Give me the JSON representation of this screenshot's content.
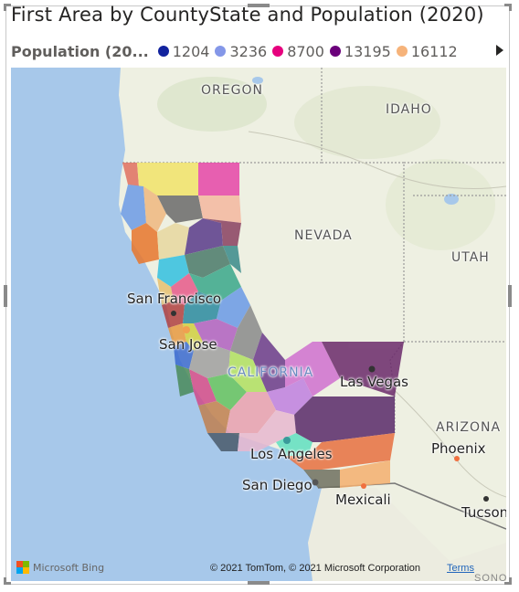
{
  "visual": {
    "title": "First Area by CountyState and Population (2020)"
  },
  "legend": {
    "title": "Population (20...",
    "items": [
      {
        "label": "1204",
        "color": "#12239e"
      },
      {
        "label": "3236",
        "color": "#8497e8"
      },
      {
        "label": "8700",
        "color": "#e6007e"
      },
      {
        "label": "13195",
        "color": "#6b007b"
      },
      {
        "label": "16112",
        "color": "#f6b37a"
      }
    ],
    "next_icon": "chevron-right-icon"
  },
  "map": {
    "states": {
      "oregon": "OREGON",
      "idaho": "IDAHO",
      "nevada": "NEVADA",
      "utah": "UTAH",
      "california": "CALIFORNIA",
      "arizona": "ARIZONA"
    },
    "cities": {
      "san_francisco": "San Francisco",
      "san_jose": "San Jose",
      "las_vegas": "Las Vegas",
      "los_angeles": "Los Angeles",
      "phoenix": "Phoenix",
      "san_diego": "San Diego",
      "mexicali": "Mexicali",
      "tucson": "Tucson"
    },
    "attribution": {
      "provider": "Microsoft Bing",
      "copyright": "© 2021 TomTom, © 2021 Microsoft Corporation",
      "terms": "Terms",
      "cutoff": "SONO"
    }
  },
  "colors": {
    "water": "#a7c8ea",
    "land": "#eef0e2",
    "accent_pink": "#e6007e",
    "accent_purple": "#6b007b"
  }
}
